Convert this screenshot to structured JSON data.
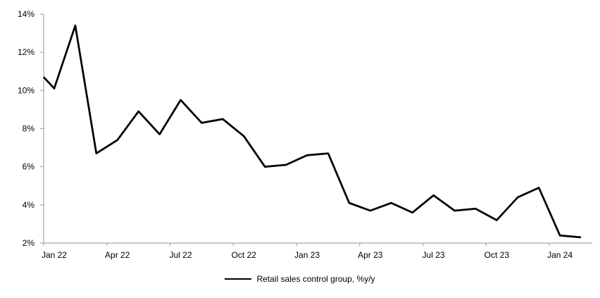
{
  "chart_data": {
    "type": "line",
    "x": [
      "Jan 22",
      "Feb 22",
      "Mar 22",
      "Apr 22",
      "May 22",
      "Jun 22",
      "Jul 22",
      "Aug 22",
      "Sep 22",
      "Oct 22",
      "Nov 22",
      "Dec 22",
      "Jan 23",
      "Feb 23",
      "Mar 23",
      "Apr 23",
      "May 23",
      "Jun 23",
      "Jul 23",
      "Aug 23",
      "Sep 23",
      "Oct 23",
      "Nov 23",
      "Dec 23",
      "Jan 24",
      "Feb 24"
    ],
    "series": [
      {
        "name": "Retail sales control group, %y/y",
        "color": "#000000",
        "values": [
          10.1,
          13.4,
          6.7,
          7.4,
          8.9,
          7.7,
          9.5,
          8.3,
          8.5,
          7.6,
          6.0,
          6.1,
          6.6,
          6.7,
          4.1,
          3.7,
          4.1,
          3.6,
          4.5,
          3.7,
          3.8,
          3.2,
          4.4,
          4.9,
          2.4,
          2.3
        ]
      }
    ],
    "edge_clip_value": 10.7,
    "xlabel": "",
    "ylabel": "",
    "ylim": [
      2,
      14
    ],
    "ytick_step": 2,
    "ytick_labels": [
      "2%",
      "4%",
      "6%",
      "8%",
      "10%",
      "12%",
      "14%"
    ],
    "xtick_labels": [
      "Jan 22",
      "Apr 22",
      "Jul 22",
      "Oct 22",
      "Jan 23",
      "Apr 23",
      "Jul 23",
      "Oct 23",
      "Jan 24"
    ],
    "x_major_tick_every": 3,
    "grid": false,
    "legend_position": "bottom",
    "axis_color": "#a6a6a6",
    "text_color": "#000000",
    "line_width": 2.75
  }
}
